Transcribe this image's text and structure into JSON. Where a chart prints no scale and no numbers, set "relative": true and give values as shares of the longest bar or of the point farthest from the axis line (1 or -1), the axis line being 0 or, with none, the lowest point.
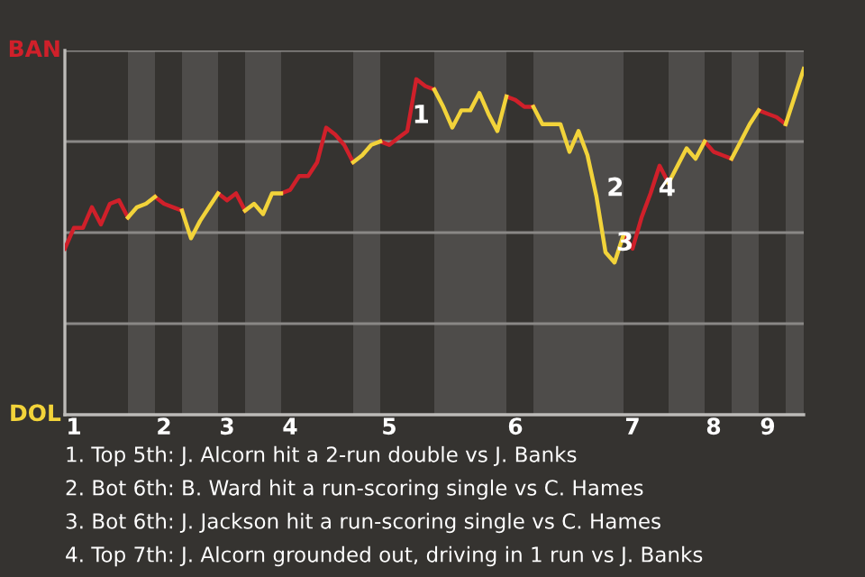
{
  "chart_data": {
    "type": "line",
    "relative": true,
    "categories": [
      null,
      "1",
      null,
      null,
      null,
      null,
      null,
      null,
      null,
      null,
      null,
      "2",
      null,
      null,
      null,
      null,
      null,
      null,
      "3",
      null,
      null,
      null,
      null,
      null,
      null,
      "4",
      null,
      null,
      null,
      null,
      null,
      null,
      null,
      null,
      null,
      null,
      "5",
      null,
      null,
      null,
      null,
      null,
      null,
      null,
      null,
      null,
      null,
      null,
      null,
      null,
      "6",
      null,
      null,
      null,
      null,
      null,
      null,
      null,
      null,
      null,
      null,
      null,
      null,
      "7",
      null,
      null,
      null,
      null,
      null,
      null,
      null,
      null,
      "8",
      null,
      null,
      null,
      null,
      null,
      "9",
      null,
      null,
      null,
      null
    ],
    "series": [
      {
        "color": "#d0202a",
        "values": [
          0.48,
          0.54,
          0.54,
          0.6,
          0.55,
          0.61,
          0.62,
          0.57,
          null,
          null,
          0.63,
          0.61,
          0.6,
          0.59,
          null,
          null,
          null,
          0.64,
          0.62,
          0.64,
          0.59,
          null,
          null,
          null,
          0.64,
          0.65,
          0.69,
          0.69,
          0.73,
          0.83,
          0.81,
          0.78,
          0.73,
          null,
          null,
          0.79,
          0.78,
          0.8,
          0.82,
          0.97,
          0.95,
          0.94,
          null,
          null,
          null,
          null,
          null,
          null,
          null,
          0.92,
          0.91,
          0.89,
          0.89,
          null,
          null,
          null,
          null,
          null,
          null,
          null,
          null,
          null,
          0.52,
          0.48,
          0.57,
          0.64,
          0.72,
          0.67,
          null,
          null,
          null,
          0.79,
          0.76,
          0.75,
          0.74,
          null,
          null,
          0.88,
          0.87,
          0.86,
          0.84,
          null,
          null
        ]
      },
      {
        "color": "#f2d33a",
        "values": [
          null,
          null,
          null,
          null,
          null,
          null,
          null,
          0.57,
          0.6,
          0.61,
          0.63,
          null,
          null,
          0.59,
          0.51,
          0.56,
          0.6,
          0.64,
          null,
          null,
          0.59,
          0.61,
          0.58,
          0.64,
          0.64,
          null,
          null,
          null,
          null,
          null,
          null,
          null,
          0.73,
          0.75,
          0.78,
          0.79,
          null,
          null,
          null,
          null,
          null,
          0.94,
          0.89,
          0.83,
          0.88,
          0.88,
          0.93,
          0.87,
          0.82,
          0.92,
          null,
          null,
          0.89,
          0.84,
          0.84,
          0.84,
          0.76,
          0.82,
          0.75,
          0.63,
          0.47,
          0.44,
          0.52,
          null,
          null,
          null,
          null,
          0.67,
          0.72,
          0.77,
          0.74,
          0.79,
          null,
          null,
          0.74,
          0.79,
          0.84,
          0.88,
          null,
          null,
          0.84,
          0.92,
          1
        ]
      }
    ],
    "grid": "y",
    "marker": "none",
    "line_style": "solid",
    "annotations": [
      "BAN",
      "DOL",
      "1",
      "2",
      "3",
      "4",
      "1. Top 5th: J. Alcorn hit a 2-run double vs J. Banks",
      "2. Bot 6th: B. Ward hit a run-scoring single vs C. Hames",
      "3. Bot 6th: J. Jackson hit a run-scoring single vs C. Hames",
      "4. Top 7th: J. Alcorn grounded out, driving in 1 run vs J. Banks"
    ]
  }
}
